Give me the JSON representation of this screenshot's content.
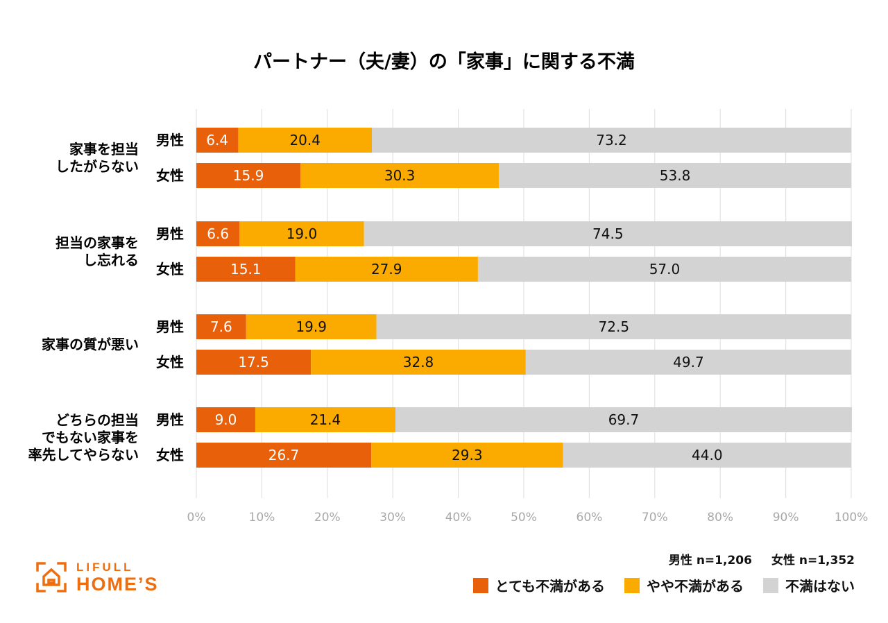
{
  "chart_data": {
    "type": "bar",
    "orientation": "horizontal",
    "stacked": true,
    "title": "パートナー（夫/妻）の「家事」に関する不満",
    "categories": [
      {
        "label": [
          "家事を担当",
          "したがらない"
        ]
      },
      {
        "label": [
          "担当の家事を",
          "し忘れる"
        ]
      },
      {
        "label": [
          "家事の質が悪い"
        ]
      },
      {
        "label": [
          "どちらの担当",
          "でもない家事を",
          "率先してやらない"
        ]
      }
    ],
    "groups": [
      "男性",
      "女性"
    ],
    "series": [
      {
        "name": "とても不満がある",
        "color": "#e8600a",
        "values": [
          [
            6.4,
            15.9
          ],
          [
            6.6,
            15.1
          ],
          [
            7.6,
            17.5
          ],
          [
            9.0,
            26.7
          ]
        ],
        "labels": [
          [
            "6.4",
            "15.9"
          ],
          [
            "6.6",
            "15.1"
          ],
          [
            "7.6",
            "17.5"
          ],
          [
            "9.0",
            "26.7"
          ]
        ]
      },
      {
        "name": "やや不満がある",
        "color": "#fbaa00",
        "values": [
          [
            20.4,
            30.3
          ],
          [
            19.0,
            27.9
          ],
          [
            19.9,
            32.8
          ],
          [
            21.4,
            29.3
          ]
        ],
        "labels": [
          [
            "20.4",
            "30.3"
          ],
          [
            "19.0",
            "27.9"
          ],
          [
            "19.9",
            "32.8"
          ],
          [
            "21.4",
            "29.3"
          ]
        ]
      },
      {
        "name": "不満はない",
        "color": "#d3d3d3",
        "values": [
          [
            73.2,
            53.8
          ],
          [
            74.5,
            57.0
          ],
          [
            72.5,
            49.7
          ],
          [
            69.7,
            44.0
          ]
        ],
        "labels": [
          [
            "73.2",
            "53.8"
          ],
          [
            "74.5",
            "57.0"
          ],
          [
            "72.5",
            "49.7"
          ],
          [
            "69.7",
            "44.0"
          ]
        ]
      }
    ],
    "value_label_colors": [
      "#ffffff",
      "#111111",
      "#111111"
    ],
    "xlim": [
      0,
      100
    ],
    "x_ticks": [
      "0%",
      "10%",
      "20%",
      "30%",
      "40%",
      "50%",
      "60%",
      "70%",
      "80%",
      "90%",
      "100%"
    ],
    "grid": true,
    "legend_position": "bottom-right"
  },
  "sample_note": {
    "male": "男性 n=1,206",
    "female": "女性 n=1,352"
  },
  "brand": {
    "name_top": "LIFULL",
    "name_bottom": "HOME’S",
    "color": "#ed6d0f",
    "icon": "home-icon"
  }
}
